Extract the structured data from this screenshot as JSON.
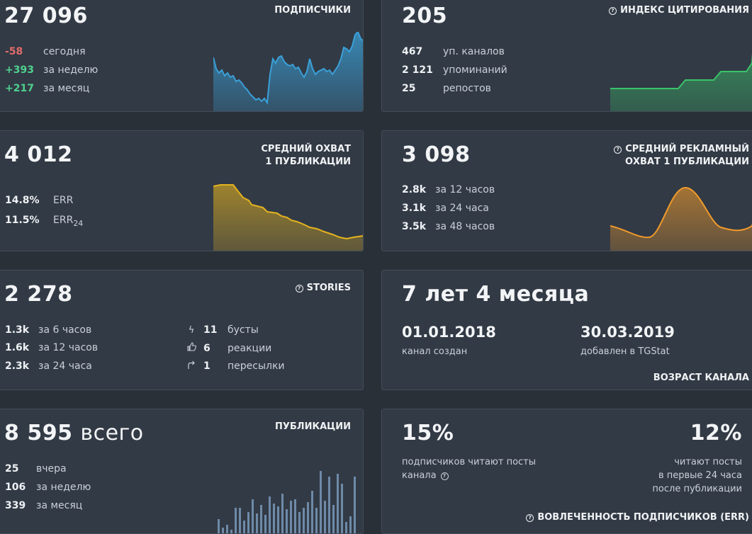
{
  "subscribers": {
    "value": "27 096",
    "title": "ПОДПИСЧИКИ",
    "rows": [
      {
        "value": "-58",
        "label": "сегодня"
      },
      {
        "value": "+393",
        "label": "за неделю"
      },
      {
        "value": "+217",
        "label": "за месяц"
      }
    ],
    "color": "#3aa0d8"
  },
  "citation": {
    "value": "205",
    "title": "ИНДЕКС ЦИТИРОВАНИЯ",
    "rows": [
      {
        "value": "467",
        "label": "уп. каналов"
      },
      {
        "value": "2 121",
        "label": "упоминаний"
      },
      {
        "value": "25",
        "label": "репостов"
      }
    ],
    "color": "#39c46a"
  },
  "reach": {
    "value": "4 012",
    "title_line1": "СРЕДНИЙ ОХВАТ",
    "title_line2": "1 ПУБЛИКАЦИИ",
    "rows": [
      {
        "value": "14.8%",
        "label": "ERR"
      },
      {
        "value": "11.5%",
        "label": "ERR",
        "sub": "24"
      }
    ],
    "color": "#e5b31e"
  },
  "ad_reach": {
    "value": "3 098",
    "title_line1": "СРЕДНИЙ РЕКЛАМНЫЙ",
    "title_line2": "ОХВАТ 1 ПУБЛИКАЦИИ",
    "rows": [
      {
        "value": "2.8k",
        "label": "за 12 часов"
      },
      {
        "value": "3.1k",
        "label": "за 24 часа"
      },
      {
        "value": "3.5k",
        "label": "за 48 часов"
      }
    ],
    "color": "#f09a2a"
  },
  "stories": {
    "value": "2 278",
    "title": "STORIES",
    "left_rows": [
      {
        "value": "1.3k",
        "label": "за 6 часов"
      },
      {
        "value": "1.6k",
        "label": "за 12 часов"
      },
      {
        "value": "2.3k",
        "label": "за 24 часа"
      }
    ],
    "right_rows": [
      {
        "icon": "lightning-icon",
        "value": "11",
        "label": "бусты"
      },
      {
        "icon": "thumbs-up-icon",
        "value": "6",
        "label": "реакции"
      },
      {
        "icon": "share-arrow-icon",
        "value": "1",
        "label": "пересылки"
      }
    ]
  },
  "age": {
    "value": "7 лет 4 месяца",
    "created_date": "01.01.2018",
    "created_label": "канал создан",
    "added_date": "30.03.2019",
    "added_label": "добавлен в TGStat",
    "title": "ВОЗРАСТ КАНАЛА"
  },
  "posts": {
    "value": "8 595",
    "unit": "всего",
    "title": "ПУБЛИКАЦИИ",
    "rows": [
      {
        "value": "25",
        "label": "вчера"
      },
      {
        "value": "106",
        "label": "за неделю"
      },
      {
        "value": "339",
        "label": "за месяц"
      }
    ],
    "color": "#6e8aa8"
  },
  "engagement": {
    "left_value": "15%",
    "left_text_1": "подписчиков читают посты",
    "left_text_2": "канала",
    "right_value": "12%",
    "right_text_1": "читают посты",
    "right_text_2": "в первые 24 часа",
    "right_text_3": "после публикации",
    "title": "ВОВЛЕЧЕННОСТЬ ПОДПИСЧИКОВ (ERR)"
  }
}
